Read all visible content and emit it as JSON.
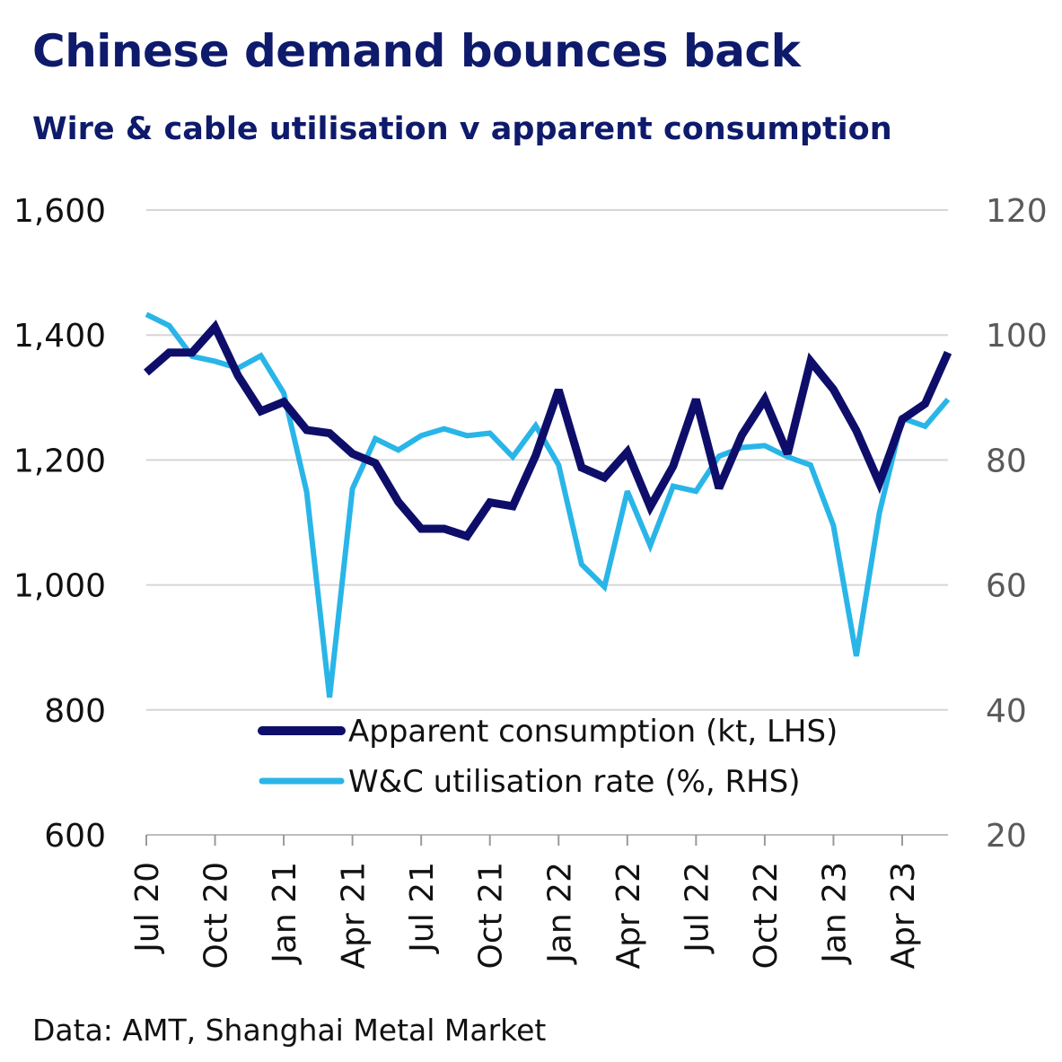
{
  "chart_data": {
    "type": "line",
    "title": "Chinese demand bounces back",
    "subtitle": "Wire & cable utilisation v apparent consumption",
    "source": "Data: AMT, Shanghai Metal Market",
    "x_tick_labels": [
      "Jul 20",
      "Oct 20",
      "Jan 21",
      "Apr 21",
      "Jul 21",
      "Oct 21",
      "Jan 22",
      "Apr 22",
      "Jul 22",
      "Oct 22",
      "Jan 23",
      "Apr 23"
    ],
    "x": [
      "Jul 20",
      "Aug 20",
      "Sep 20",
      "Oct 20",
      "Nov 20",
      "Dec 20",
      "Jan 21",
      "Feb 21",
      "Mar 21",
      "Apr 21",
      "May 21",
      "Jun 21",
      "Jul 21",
      "Aug 21",
      "Sep 21",
      "Oct 21",
      "Nov 21",
      "Dec 21",
      "Jan 22",
      "Feb 22",
      "Mar 22",
      "Apr 22",
      "May 22",
      "Jun 22",
      "Jul 22",
      "Aug 22",
      "Sep 22",
      "Oct 22",
      "Nov 22",
      "Dec 22",
      "Jan 23",
      "Feb 23",
      "Mar 23",
      "Apr 23",
      "May 23",
      "Jun 23"
    ],
    "y_left": {
      "ticks": [
        "600",
        "800",
        "1,000",
        "1,200",
        "1,400",
        "1,600"
      ],
      "ylim": [
        600,
        1600
      ]
    },
    "y_right": {
      "ticks": [
        "20",
        "40",
        "60",
        "80",
        "100",
        "120"
      ],
      "ylim": [
        20,
        120
      ]
    },
    "grid": "horizontal",
    "legend_position": "bottom-center",
    "series": [
      {
        "name": "Apparent consumption (kt, LHS)",
        "axis": "left",
        "color": "#0e0e6a",
        "values": [
          1340,
          1372,
          1372,
          1413,
          1335,
          1278,
          1293,
          1248,
          1243,
          1210,
          1195,
          1133,
          1090,
          1090,
          1078,
          1132,
          1126,
          1207,
          1312,
          1188,
          1172,
          1213,
          1125,
          1190,
          1297,
          1155,
          1240,
          1297,
          1210,
          1358,
          1313,
          1247,
          1163,
          1265,
          1290,
          1372
        ]
      },
      {
        "name": "W&C utilisation rate (%, RHS)",
        "axis": "right",
        "color": "#29b5e8",
        "values": [
          103.3,
          101.5,
          96.6,
          95.8,
          94.7,
          96.7,
          90.7,
          74.9,
          42,
          75.4,
          83.4,
          81.6,
          83.9,
          85,
          83.9,
          84.3,
          80.5,
          85.5,
          79.2,
          63.3,
          59.7,
          75,
          66.3,
          75.8,
          75,
          80.6,
          82,
          82.3,
          80.5,
          79.2,
          69.5,
          48.6,
          71.5,
          86.7,
          85.4,
          89.7
        ]
      }
    ]
  }
}
